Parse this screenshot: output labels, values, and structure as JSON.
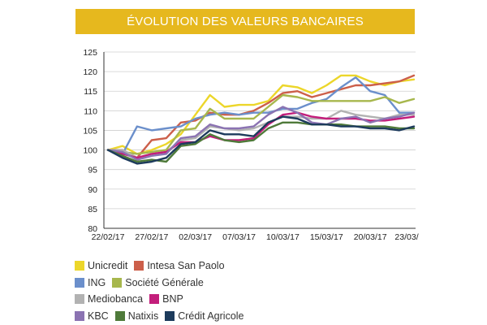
{
  "colors": {
    "title_bg": "#e6b81e"
  },
  "chart_data": {
    "type": "line",
    "title": "ÉVOLUTION DES VALEURS BANCAIRES",
    "xlabel": "",
    "ylabel": "",
    "ylim": [
      80,
      125
    ],
    "yticks": [
      80,
      85,
      90,
      95,
      100,
      105,
      110,
      115,
      120,
      125
    ],
    "xtick_labels": [
      "22/02/17",
      "27/02/17",
      "02/03/17",
      "07/03/17",
      "10/03/17",
      "15/03/17",
      "20/03/17",
      "23/03/"
    ],
    "xtick_indices": [
      0,
      3,
      6,
      9,
      12,
      15,
      18,
      20.5
    ],
    "grid": "horizontal",
    "legend_position": "bottom",
    "series": [
      {
        "name": "Unicredit",
        "color": "#ecd62a",
        "values": [
          100,
          101,
          99,
          100,
          101.5,
          104,
          109,
          114,
          111,
          111.5,
          111.5,
          112.5,
          116.5,
          116,
          114.5,
          116.5,
          119,
          119,
          117.5,
          116.5,
          117.5,
          118
        ]
      },
      {
        "name": "Intesa San Paolo",
        "color": "#cc5f4a",
        "values": [
          100,
          100,
          98,
          102.5,
          103,
          107,
          107.5,
          109.5,
          109,
          109,
          110,
          112,
          114.5,
          115,
          113.5,
          114.5,
          115.5,
          116.5,
          116.5,
          117,
          117.5,
          119
        ]
      },
      {
        "name": "ING",
        "color": "#6b8fcb",
        "values": [
          100,
          99,
          106,
          105,
          105.5,
          106,
          108,
          109,
          109.5,
          109,
          109.5,
          109.5,
          110.5,
          110.5,
          112,
          113,
          116,
          118.5,
          115,
          114,
          109.5,
          109.5
        ]
      },
      {
        "name": "Société Générale",
        "color": "#a7b74d",
        "values": [
          100,
          99.5,
          99,
          99.5,
          100,
          105,
          105.5,
          110.5,
          108,
          108,
          108,
          111,
          114,
          113.5,
          112.5,
          112.5,
          112.5,
          112.5,
          112.5,
          113.5,
          112,
          113
        ]
      },
      {
        "name": "Mediobanca",
        "color": "#b2b2b2",
        "values": [
          100,
          100,
          98,
          99,
          99.5,
          102.5,
          103,
          106,
          105.5,
          105,
          105.5,
          107,
          108.5,
          108.5,
          108,
          108,
          110,
          109,
          108.5,
          108,
          109,
          109
        ]
      },
      {
        "name": "BNP",
        "color": "#c31e7b",
        "values": [
          100,
          99,
          98,
          99,
          99.5,
          102,
          102,
          103.5,
          102.5,
          102.5,
          103,
          106.5,
          109,
          109.5,
          108.5,
          108,
          108,
          108,
          107.5,
          107.5,
          108,
          108.5
        ]
      },
      {
        "name": "KBC",
        "color": "#8b73b2",
        "values": [
          100,
          99.5,
          97.5,
          98.5,
          99,
          103,
          103.5,
          106.5,
          105.5,
          105.5,
          106,
          109,
          111,
          109.5,
          107,
          106.5,
          108,
          108.5,
          107,
          108,
          108.5,
          109.5
        ]
      },
      {
        "name": "Natixis",
        "color": "#4f7a3a",
        "values": [
          100,
          98.5,
          97,
          97.5,
          97,
          101,
          101.5,
          104,
          102.5,
          102,
          102.5,
          105.5,
          107,
          107,
          106.5,
          106.5,
          106.5,
          106,
          106,
          106,
          105.5,
          105.5
        ]
      },
      {
        "name": "Crédit Agricole",
        "color": "#1d3b5c",
        "values": [
          100,
          98,
          96.5,
          97,
          98,
          101.5,
          102,
          105,
          104,
          104,
          103.5,
          107,
          108.5,
          108,
          106.5,
          106.5,
          106,
          106,
          105.5,
          105.5,
          105,
          106
        ]
      }
    ]
  },
  "legend": {
    "rows": [
      [
        {
          "label": "Unicredit",
          "color": "#ecd62a"
        },
        {
          "label": "Intesa San Paolo",
          "color": "#cc5f4a"
        }
      ],
      [
        {
          "label": "ING",
          "color": "#6b8fcb"
        },
        {
          "label": "Société Générale",
          "color": "#a7b74d"
        }
      ],
      [
        {
          "label": "Mediobanca",
          "color": "#b2b2b2"
        },
        {
          "label": "BNP",
          "color": "#c31e7b"
        }
      ],
      [
        {
          "label": "KBC",
          "color": "#8b73b2"
        },
        {
          "label": "Natixis",
          "color": "#4f7a3a"
        },
        {
          "label": "Crédit Agricole",
          "color": "#1d3b5c"
        }
      ]
    ]
  }
}
